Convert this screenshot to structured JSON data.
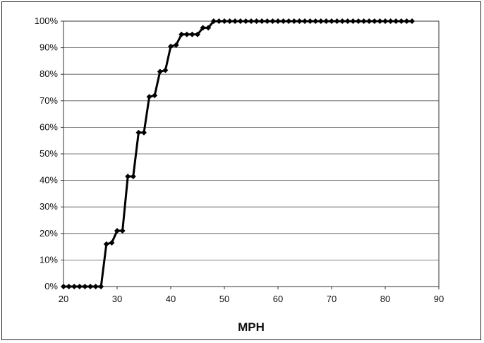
{
  "chart_data": {
    "type": "line",
    "title": "",
    "xlabel": "MPH",
    "ylabel": "",
    "xlim": [
      20,
      90
    ],
    "ylim": [
      0,
      100
    ],
    "x_ticks": [
      20,
      30,
      40,
      50,
      60,
      70,
      80,
      90
    ],
    "y_ticks": [
      0,
      10,
      20,
      30,
      40,
      50,
      60,
      70,
      80,
      90,
      100
    ],
    "y_tick_format": "percent",
    "grid": true,
    "legend": "none",
    "series": [
      {
        "color": "#000000",
        "marker": "diamond",
        "points": [
          [
            20,
            0
          ],
          [
            21,
            0
          ],
          [
            22,
            0
          ],
          [
            23,
            0
          ],
          [
            24,
            0
          ],
          [
            25,
            0
          ],
          [
            26,
            0
          ],
          [
            27,
            0
          ],
          [
            28,
            16
          ],
          [
            29,
            16.5
          ],
          [
            30,
            21
          ],
          [
            31,
            21
          ],
          [
            32,
            41.5
          ],
          [
            33,
            41.5
          ],
          [
            34,
            58
          ],
          [
            35,
            58
          ],
          [
            36,
            71.5
          ],
          [
            37,
            72
          ],
          [
            38,
            81
          ],
          [
            39,
            81.5
          ],
          [
            40,
            90.5
          ],
          [
            41,
            91
          ],
          [
            42,
            95
          ],
          [
            43,
            95
          ],
          [
            44,
            95
          ],
          [
            45,
            95
          ],
          [
            46,
            97.5
          ],
          [
            47,
            97.5
          ],
          [
            48,
            100
          ],
          [
            49,
            100
          ],
          [
            50,
            100
          ],
          [
            51,
            100
          ],
          [
            52,
            100
          ],
          [
            53,
            100
          ],
          [
            54,
            100
          ],
          [
            55,
            100
          ],
          [
            56,
            100
          ],
          [
            57,
            100
          ],
          [
            58,
            100
          ],
          [
            59,
            100
          ],
          [
            60,
            100
          ],
          [
            61,
            100
          ],
          [
            62,
            100
          ],
          [
            63,
            100
          ],
          [
            64,
            100
          ],
          [
            65,
            100
          ],
          [
            66,
            100
          ],
          [
            67,
            100
          ],
          [
            68,
            100
          ],
          [
            69,
            100
          ],
          [
            70,
            100
          ],
          [
            71,
            100
          ],
          [
            72,
            100
          ],
          [
            73,
            100
          ],
          [
            74,
            100
          ],
          [
            75,
            100
          ],
          [
            76,
            100
          ],
          [
            77,
            100
          ],
          [
            78,
            100
          ],
          [
            79,
            100
          ],
          [
            80,
            100
          ],
          [
            81,
            100
          ],
          [
            82,
            100
          ],
          [
            83,
            100
          ],
          [
            84,
            100
          ],
          [
            85,
            100
          ]
        ]
      }
    ]
  }
}
